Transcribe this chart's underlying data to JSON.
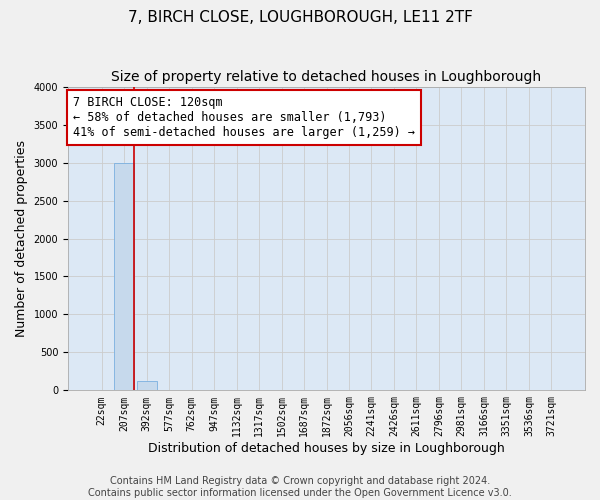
{
  "title": "7, BIRCH CLOSE, LOUGHBOROUGH, LE11 2TF",
  "subtitle": "Size of property relative to detached houses in Loughborough",
  "xlabel": "Distribution of detached houses by size in Loughborough",
  "ylabel": "Number of detached properties",
  "footer_line1": "Contains HM Land Registry data © Crown copyright and database right 2024.",
  "footer_line2": "Contains public sector information licensed under the Open Government Licence v3.0.",
  "annotation_title": "7 BIRCH CLOSE: 120sqm",
  "annotation_line2": "← 58% of detached houses are smaller (1,793)",
  "annotation_line3": "41% of semi-detached houses are larger (1,259) →",
  "bar_labels": [
    "22sqm",
    "207sqm",
    "392sqm",
    "577sqm",
    "762sqm",
    "947sqm",
    "1132sqm",
    "1317sqm",
    "1502sqm",
    "1687sqm",
    "1872sqm",
    "2056sqm",
    "2241sqm",
    "2426sqm",
    "2611sqm",
    "2796sqm",
    "2981sqm",
    "3166sqm",
    "3351sqm",
    "3536sqm",
    "3721sqm"
  ],
  "bar_values": [
    0,
    3000,
    120,
    0,
    0,
    0,
    0,
    0,
    0,
    0,
    0,
    0,
    0,
    0,
    0,
    0,
    0,
    0,
    0,
    0,
    0
  ],
  "bar_color": "#c6d9ec",
  "bar_edge_color": "#7aafe0",
  "annotation_box_color": "#ffffff",
  "annotation_box_edge_color": "#cc0000",
  "property_line_color": "#cc0000",
  "property_line_x": 1.42,
  "ylim": [
    0,
    4000
  ],
  "yticks": [
    0,
    500,
    1000,
    1500,
    2000,
    2500,
    3000,
    3500,
    4000
  ],
  "grid_color": "#cccccc",
  "bg_color": "#dce8f5",
  "fig_bg_color": "#f0f0f0",
  "title_fontsize": 11,
  "subtitle_fontsize": 10,
  "axis_label_fontsize": 9,
  "tick_fontsize": 7,
  "annotation_fontsize": 8.5,
  "footer_fontsize": 7
}
